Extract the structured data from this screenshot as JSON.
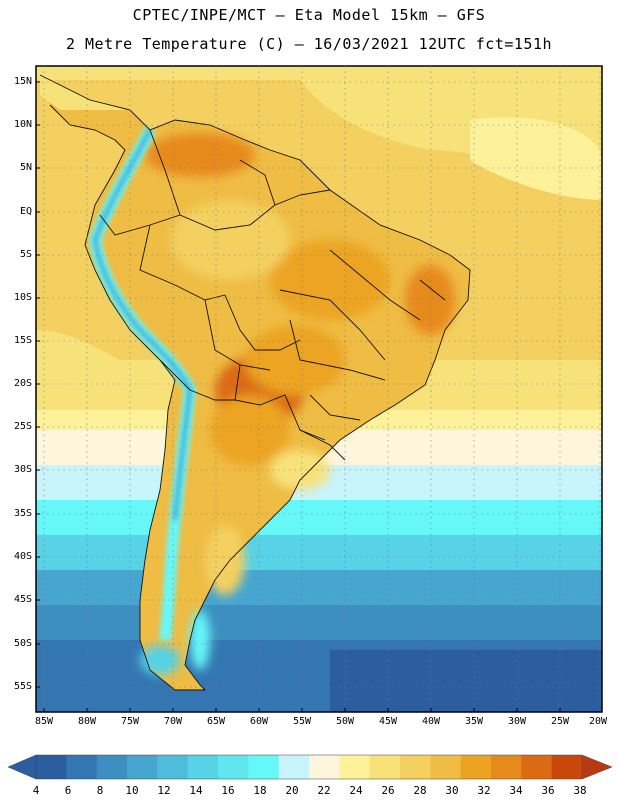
{
  "header": {
    "line1": "CPTEC/INPE/MCT –  Eta Model 15km – GFS",
    "line2": "2 Metre Temperature (C) – 16/03/2021 12UTC fct=151h"
  },
  "map": {
    "lat_labels": [
      "15N",
      "10N",
      "5N",
      "EQ",
      "5S",
      "10S",
      "15S",
      "20S",
      "25S",
      "30S",
      "35S",
      "40S",
      "45S",
      "50S",
      "55S"
    ],
    "lon_labels": [
      "85W",
      "80W",
      "75W",
      "70W",
      "65W",
      "60W",
      "55W",
      "50W",
      "45W",
      "40W",
      "35W",
      "30W",
      "25W",
      "20W"
    ]
  },
  "colorbar": {
    "labels": [
      "4",
      "6",
      "8",
      "10",
      "12",
      "14",
      "16",
      "18",
      "20",
      "22",
      "24",
      "26",
      "28",
      "30",
      "32",
      "34",
      "36",
      "38"
    ],
    "colors": [
      "#2b5d9f",
      "#3376b2",
      "#3d8fc2",
      "#46a6d0",
      "#4fbcdc",
      "#57d2e6",
      "#5fe6ef",
      "#66f8f8",
      "#c8f4fb",
      "#fdf6dd",
      "#fdf29a",
      "#f7e27a",
      "#f3d060",
      "#efbc44",
      "#eca420",
      "#e78a1c",
      "#dc6a12",
      "#c8480c"
    ],
    "low_arrow_color": "#2b5d9f",
    "high_arrow_color": "#b83a10"
  }
}
